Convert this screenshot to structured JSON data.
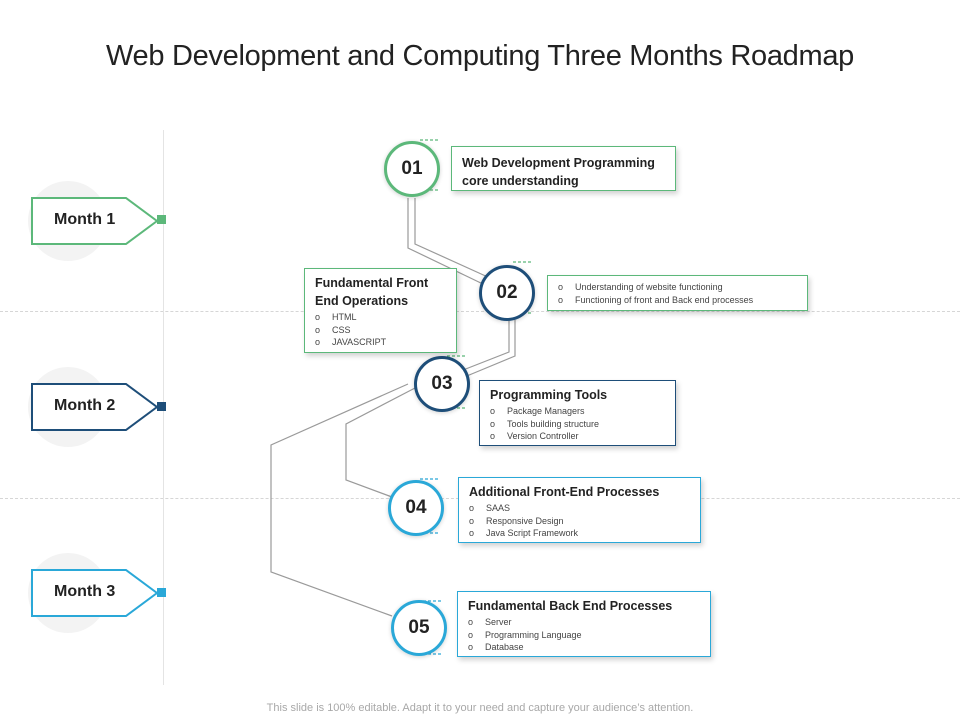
{
  "title": "Web Development and Computing Three Months Roadmap",
  "months": [
    {
      "label": "Month 1",
      "color": "#5cb87a"
    },
    {
      "label": "Month 2",
      "color": "#1e4e79"
    },
    {
      "label": "Month 3",
      "color": "#2aa8d8"
    }
  ],
  "steps": [
    {
      "number": "01",
      "color": "#5cb87a",
      "title": "Web Development Programming core understanding",
      "items": []
    },
    {
      "number": "02",
      "color": "#1e4e79",
      "title": "",
      "items": [
        "Understanding of website functioning",
        "Functioning of front and Back end processes"
      ]
    },
    {
      "number": "03",
      "color": "#1e4e79",
      "title": "Programming Tools",
      "items": [
        "Package Managers",
        "Tools building structure",
        "Version Controller"
      ]
    },
    {
      "number": "04",
      "color": "#2aa8d8",
      "title": "Additional Front-End Processes",
      "items": [
        "SAAS",
        "Responsive Design",
        "Java Script Framework"
      ]
    },
    {
      "number": "05",
      "color": "#2aa8d8",
      "title": "Fundamental Back End Processes",
      "items": [
        "Server",
        "Programming Language",
        "Database"
      ]
    }
  ],
  "side_box": {
    "title": "Fundamental Front End Operations",
    "color": "#5cb87a",
    "items": [
      "HTML",
      "CSS",
      "JAVASCRIPT"
    ]
  },
  "footer": "This slide is 100% editable. Adapt it to your need and capture your audience’s attention."
}
